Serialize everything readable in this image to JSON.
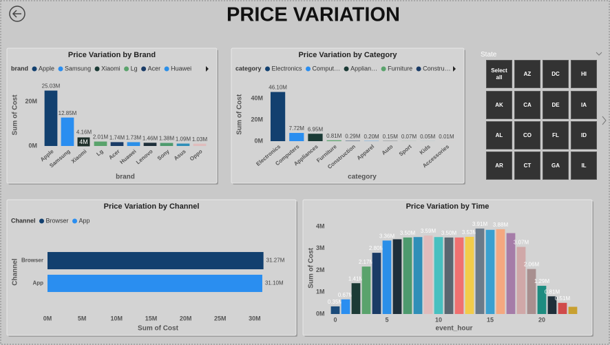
{
  "title": "PRICE VARIATION",
  "chart_data": [
    {
      "type": "bar",
      "title": "Price Variation by Brand",
      "legend": {
        "title": "brand",
        "items": [
          "Apple",
          "Samsung",
          "Xiaomi",
          "Lg",
          "Acer",
          "Huawei"
        ]
      },
      "categories": [
        "Apple",
        "Samsung",
        "Xiaomi",
        "Lg",
        "Acer",
        "Huawei",
        "Lenovo",
        "Sony",
        "Asus",
        "Oppo"
      ],
      "values": [
        25.03,
        12.85,
        4.16,
        2.01,
        1.74,
        1.73,
        1.46,
        1.38,
        1.09,
        1.03
      ],
      "value_labels": [
        "25.03M",
        "12.85M",
        "4.16M",
        "2.01M",
        "1.74M",
        "1.73M",
        "1.46M",
        "1.38M",
        "1.09M",
        "1.03M"
      ],
      "colors": [
        "#12406f",
        "#2a8ef0",
        "#1b3b36",
        "#5aa36c",
        "#1a3b66",
        "#2b8fe8",
        "#1e2f3a",
        "#4d9a6e",
        "#2f8fb8",
        "#e0bcbc"
      ],
      "x_label": "brand",
      "y_label": "Sum of Cost",
      "ylim": [
        0,
        28
      ],
      "yticks": [
        {
          "value": 0,
          "label": "0M"
        },
        {
          "value": 20,
          "label": "20M"
        }
      ],
      "tooltip": "4M"
    },
    {
      "type": "bar",
      "title": "Price Variation by Category",
      "legend": {
        "title": "category",
        "items": [
          "Electronics",
          "Comput…",
          "Applian…",
          "Furniture",
          "Constru…"
        ]
      },
      "categories": [
        "Electronics",
        "Computers",
        "Appliances",
        "Furniture",
        "Construction",
        "Apparel",
        "Auto",
        "Sport",
        "Kids",
        "Accessories"
      ],
      "values": [
        46.1,
        7.72,
        6.95,
        0.81,
        0.29,
        0.2,
        0.15,
        0.07,
        0.05,
        0.01
      ],
      "value_labels": [
        "46.10M",
        "7.72M",
        "6.95M",
        "0.81M",
        "0.29M",
        "0.20M",
        "0.15M",
        "0.07M",
        "0.05M",
        "0.01M"
      ],
      "colors": [
        "#12406f",
        "#2a8ef0",
        "#1b3b36",
        "#5aa36c",
        "#1a3b66",
        "#2b8fe8",
        "#1e2f3a",
        "#4d9a6e",
        "#2f8fb8",
        "#e0bcbc"
      ],
      "x_label": "category",
      "y_label": "Sum of Cost",
      "ylim": [
        0,
        50
      ],
      "yticks": [
        {
          "value": 0,
          "label": "0M"
        },
        {
          "value": 20,
          "label": "20M"
        },
        {
          "value": 40,
          "label": "40M"
        }
      ]
    },
    {
      "type": "bar",
      "orientation": "horizontal",
      "title": "Price Variation by Channel",
      "legend": {
        "title": "Channel",
        "items": [
          "Browser",
          "App"
        ]
      },
      "categories": [
        "Browser",
        "App"
      ],
      "values": [
        31.27,
        31.1
      ],
      "value_labels": [
        "31.27M",
        "31.10M"
      ],
      "colors": [
        "#12406f",
        "#2a8ef0"
      ],
      "x_label": "Sum of Cost",
      "y_label": "Channel",
      "xlim": [
        0,
        32
      ],
      "xticks": [
        {
          "value": 0,
          "label": "0M"
        },
        {
          "value": 5,
          "label": "5M"
        },
        {
          "value": 10,
          "label": "10M"
        },
        {
          "value": 15,
          "label": "15M"
        },
        {
          "value": 20,
          "label": "20M"
        },
        {
          "value": 25,
          "label": "25M"
        },
        {
          "value": 30,
          "label": "30M"
        }
      ]
    },
    {
      "type": "bar",
      "title": "Price Variation by Time",
      "x": [
        0,
        1,
        2,
        3,
        4,
        5,
        6,
        7,
        8,
        9,
        10,
        11,
        12,
        13,
        14,
        15,
        16,
        17,
        18,
        19,
        20,
        21,
        22,
        23
      ],
      "values": [
        0.35,
        0.67,
        1.41,
        2.17,
        2.8,
        3.36,
        3.42,
        3.5,
        3.52,
        3.59,
        3.52,
        3.5,
        3.5,
        3.53,
        3.91,
        3.85,
        3.88,
        3.7,
        3.07,
        2.06,
        1.29,
        0.81,
        0.51,
        0.33
      ],
      "value_labels": [
        "0.35M",
        "0.67M",
        "1.41M",
        "2.17M",
        "2.80M",
        "3.36M",
        null,
        "3.50M",
        null,
        "3.59M",
        null,
        "3.50M",
        null,
        "3.53M",
        "3.91M",
        null,
        "3.88M",
        null,
        "3.07M",
        "2.06M",
        "1.29M",
        "0.81M",
        "0.51M",
        null
      ],
      "colors": [
        "#1a4a7a",
        "#2a8ef0",
        "#1c3b36",
        "#5aa36c",
        "#1a3b66",
        "#2b8fe8",
        "#1e2f3a",
        "#4d9a6e",
        "#2f8fb8",
        "#e0bcbc",
        "#48c0c0",
        "#5a6670",
        "#f07070",
        "#f2cc4a",
        "#6a7a8a",
        "#3aa0d0",
        "#f4a880",
        "#a57ca8",
        "#d0a8a8",
        "#a88f8f",
        "#1d8c80",
        "#1e2f3a",
        "#d04a4a",
        "#c8a030"
      ],
      "x_label": "event_hour",
      "y_label": "Sum of Cost",
      "xlim": [
        -0.5,
        23.5
      ],
      "xticks": [
        0,
        5,
        10,
        15,
        20
      ],
      "ylim": [
        0,
        4.2
      ],
      "yticks": [
        {
          "value": 0,
          "label": "0M"
        },
        {
          "value": 1,
          "label": "1M"
        },
        {
          "value": 2,
          "label": "2M"
        },
        {
          "value": 3,
          "label": "3M"
        },
        {
          "value": 4,
          "label": "4M"
        }
      ]
    }
  ],
  "slicer": {
    "title": "State",
    "items": [
      "Select all",
      "AZ",
      "DC",
      "HI",
      "AK",
      "CA",
      "DE",
      "IA",
      "AL",
      "CO",
      "FL",
      "ID",
      "AR",
      "CT",
      "GA",
      "IL"
    ]
  }
}
